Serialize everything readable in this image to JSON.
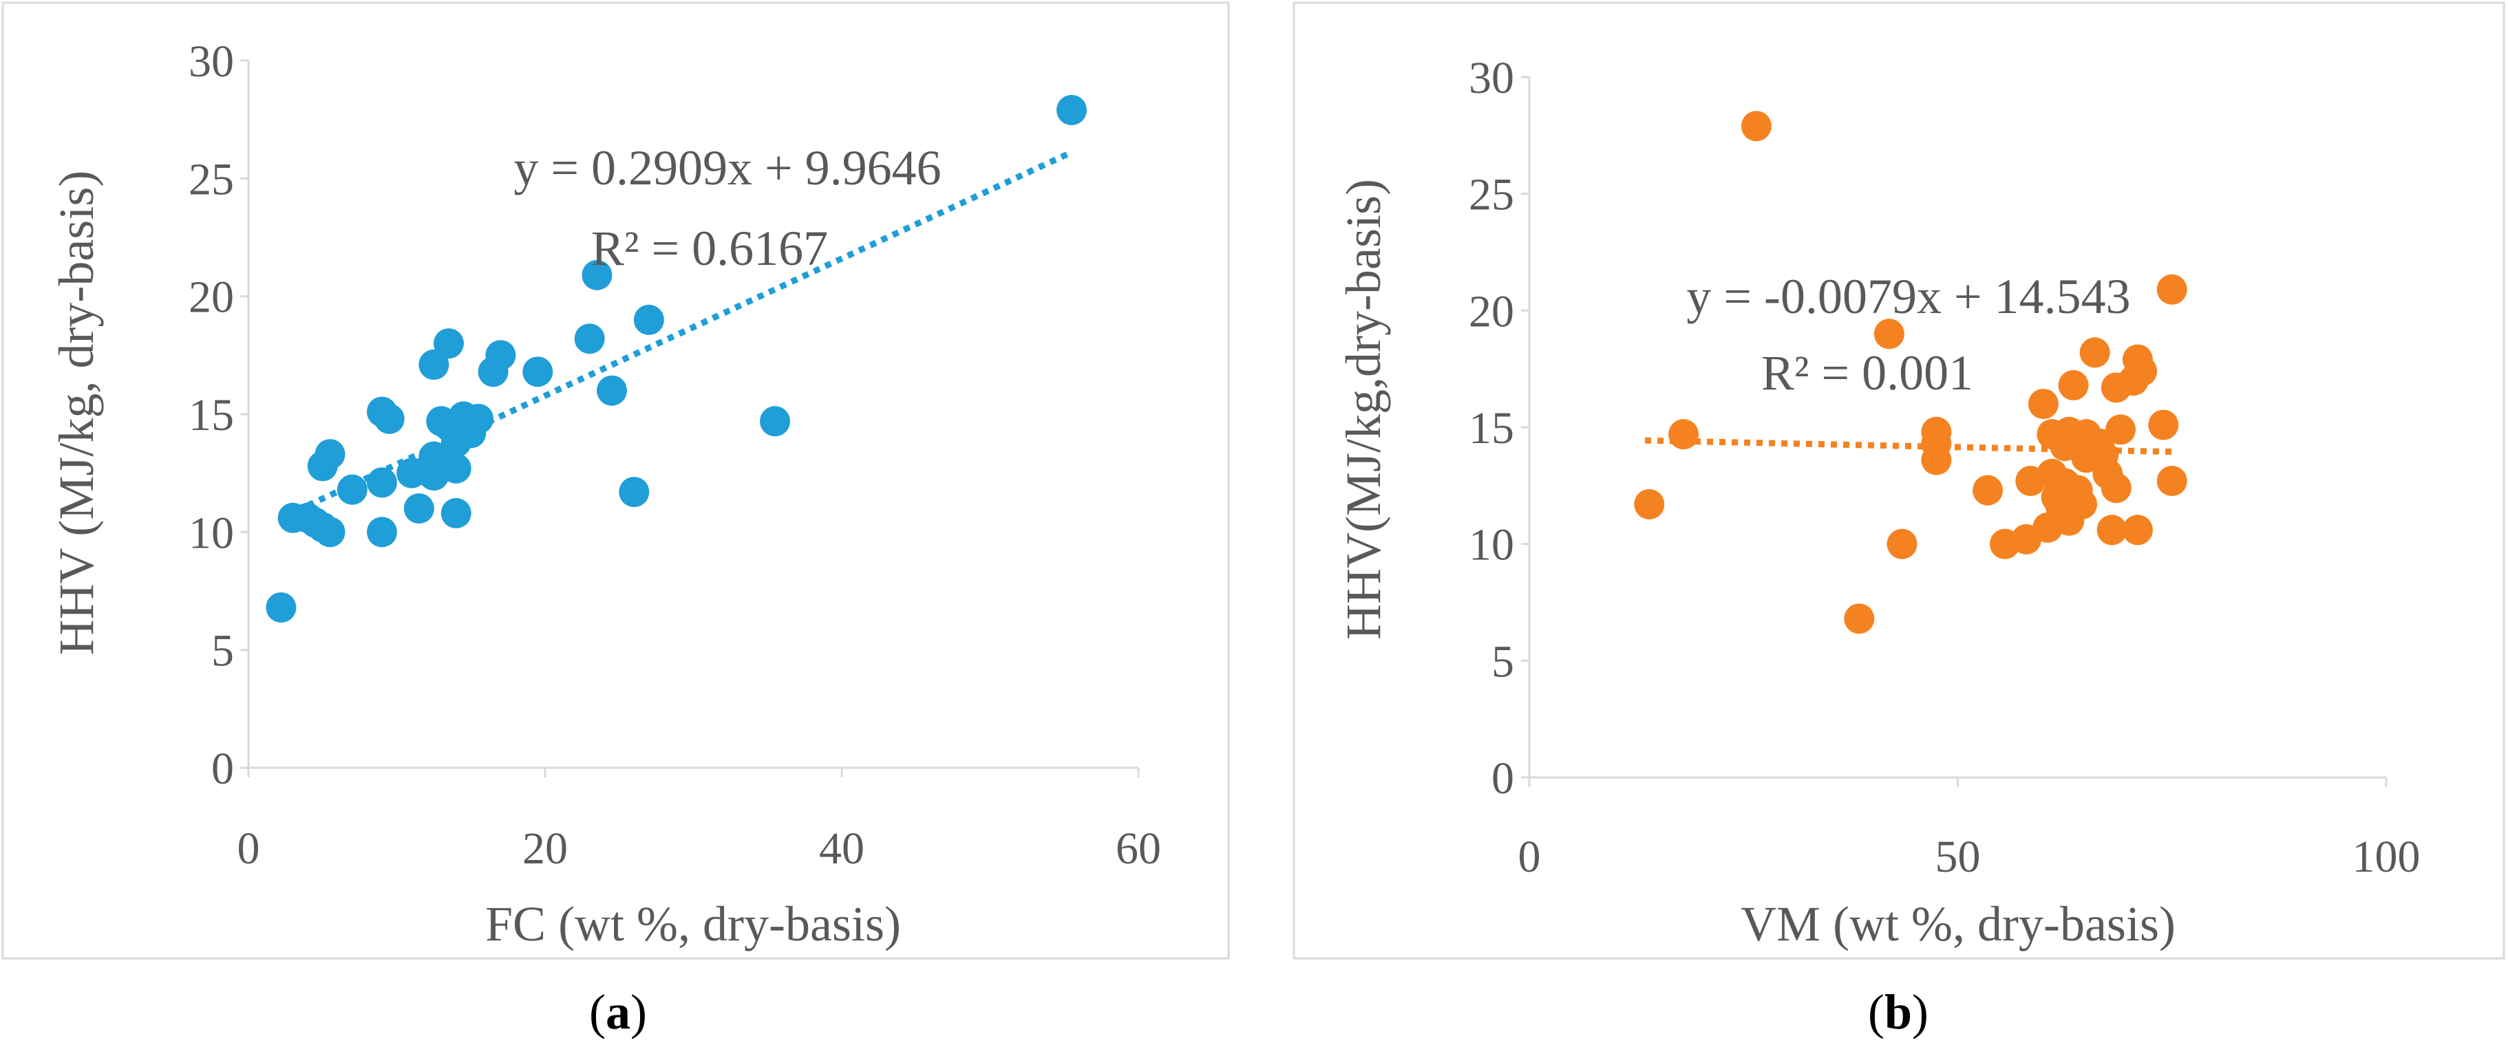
{
  "chart_data": [
    {
      "type": "scatter",
      "panel": "a",
      "caption_open": "(",
      "caption_letter": "a",
      "caption_close": ")",
      "xlabel": "FC (wt %, dry-basis)",
      "ylabel": "HHV (MJ/kg, dry-basis)",
      "xlim": [
        0,
        60
      ],
      "ylim": [
        0,
        30
      ],
      "xticks": [
        0,
        20,
        40,
        60
      ],
      "yticks": [
        0,
        5,
        10,
        15,
        20,
        25,
        30
      ],
      "color": "#1F9ED8",
      "trendline": {
        "slope": 0.2909,
        "intercept": 9.9646,
        "x_range": [
          2.5,
          55.5
        ]
      },
      "equation": "y = 0.2909x + 9.9646",
      "r_squared": "R² = 0.6167",
      "points": [
        [
          2.2,
          6.8
        ],
        [
          3.0,
          10.6
        ],
        [
          4.0,
          10.6
        ],
        [
          4.5,
          10.4
        ],
        [
          5.0,
          10.2
        ],
        [
          5.5,
          10.0
        ],
        [
          5.0,
          12.8
        ],
        [
          5.5,
          13.3
        ],
        [
          7.0,
          11.8
        ],
        [
          9.0,
          10.0
        ],
        [
          9.0,
          12.1
        ],
        [
          9.0,
          15.1
        ],
        [
          9.5,
          14.8
        ],
        [
          11.0,
          12.5
        ],
        [
          11.5,
          11.0
        ],
        [
          12.0,
          12.6
        ],
        [
          12.5,
          13.2
        ],
        [
          12.5,
          12.4
        ],
        [
          13.0,
          13.0
        ],
        [
          13.0,
          14.7
        ],
        [
          13.5,
          14.5
        ],
        [
          14.0,
          12.7
        ],
        [
          14.0,
          13.8
        ],
        [
          14.0,
          10.8
        ],
        [
          14.5,
          14.9
        ],
        [
          15.0,
          14.2
        ],
        [
          15.0,
          14.6
        ],
        [
          15.5,
          14.8
        ],
        [
          12.5,
          17.1
        ],
        [
          13.5,
          18.0
        ],
        [
          16.5,
          16.8
        ],
        [
          17.0,
          17.5
        ],
        [
          19.5,
          16.8
        ],
        [
          23.0,
          18.2
        ],
        [
          23.5,
          20.9
        ],
        [
          24.5,
          16.0
        ],
        [
          26.0,
          11.7
        ],
        [
          27.0,
          19.0
        ],
        [
          35.5,
          14.7
        ],
        [
          55.5,
          27.9
        ]
      ]
    },
    {
      "type": "scatter",
      "panel": "b",
      "caption_open": "(",
      "caption_letter": "b",
      "caption_close": ")",
      "xlabel": "VM (wt %, dry-basis)",
      "ylabel": "HHV(MJ/kg,dry-basis)",
      "xlim": [
        0,
        100
      ],
      "ylim": [
        0,
        30
      ],
      "xticks": [
        0,
        50,
        100
      ],
      "yticks": [
        0,
        5,
        10,
        15,
        20,
        25,
        30
      ],
      "color": "#F58220",
      "trendline": {
        "slope": -0.0079,
        "intercept": 14.543,
        "x_range": [
          13.5,
          75.5
        ]
      },
      "equation": "y = -0.0079x + 14.543",
      "r_squared": "R² = 0.001",
      "points": [
        [
          14.0,
          11.7
        ],
        [
          18.0,
          14.7
        ],
        [
          26.5,
          27.9
        ],
        [
          38.5,
          6.8
        ],
        [
          42.0,
          19.0
        ],
        [
          43.5,
          10.0
        ],
        [
          47.5,
          14.8
        ],
        [
          47.5,
          14.3
        ],
        [
          47.5,
          13.6
        ],
        [
          53.5,
          12.3
        ],
        [
          55.5,
          10.0
        ],
        [
          58.0,
          10.2
        ],
        [
          58.5,
          12.7
        ],
        [
          60.0,
          16.0
        ],
        [
          60.5,
          10.7
        ],
        [
          61.0,
          14.7
        ],
        [
          61.0,
          13.0
        ],
        [
          61.5,
          12.0
        ],
        [
          62.0,
          11.6
        ],
        [
          62.5,
          14.2
        ],
        [
          62.5,
          12.6
        ],
        [
          63.0,
          11.0
        ],
        [
          63.0,
          14.8
        ],
        [
          63.5,
          16.8
        ],
        [
          64.0,
          12.3
        ],
        [
          64.5,
          11.7
        ],
        [
          65.0,
          14.7
        ],
        [
          65.0,
          13.7
        ],
        [
          65.5,
          14.4
        ],
        [
          66.0,
          18.2
        ],
        [
          66.5,
          14.3
        ],
        [
          67.0,
          13.8
        ],
        [
          67.5,
          13.0
        ],
        [
          68.0,
          10.6
        ],
        [
          68.5,
          16.7
        ],
        [
          68.5,
          12.4
        ],
        [
          69.0,
          14.9
        ],
        [
          70.5,
          17.0
        ],
        [
          71.0,
          10.6
        ],
        [
          71.0,
          17.9
        ],
        [
          71.5,
          17.4
        ],
        [
          74.0,
          15.1
        ],
        [
          75.0,
          12.7
        ],
        [
          75.0,
          20.9
        ]
      ]
    }
  ]
}
